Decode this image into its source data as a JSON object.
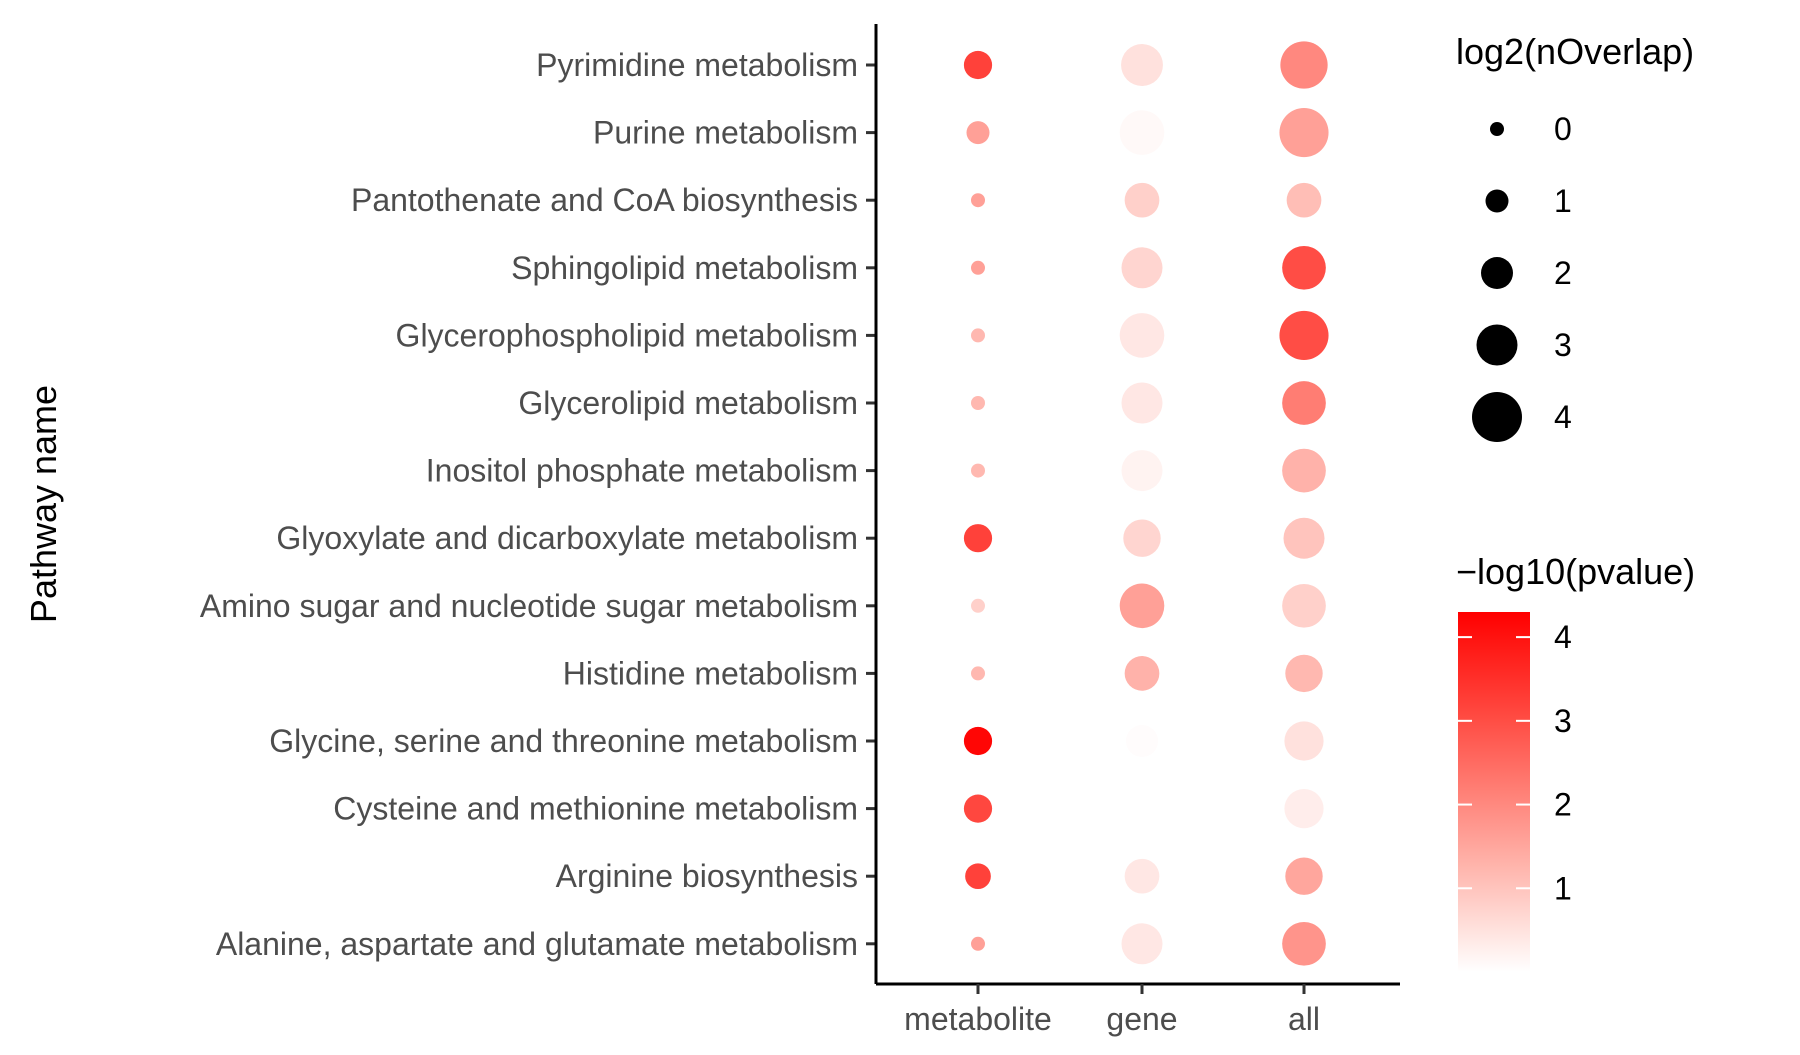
{
  "chart_data": {
    "type": "dot",
    "title": "",
    "xlabel": "",
    "ylabel": "Pathway name",
    "categories_x": [
      "metabolite",
      "gene",
      "all"
    ],
    "categories_y": [
      "Pyrimidine metabolism",
      "Purine metabolism",
      "Pantothenate and CoA biosynthesis",
      "Sphingolipid metabolism",
      "Glycerophospholipid metabolism",
      "Glycerolipid metabolism",
      "Inositol phosphate metabolism",
      "Glyoxylate and dicarboxylate metabolism",
      "Amino sugar and nucleotide sugar metabolism",
      "Histidine metabolism",
      "Glycine, serine and threonine metabolism",
      "Cysteine and methionine metabolism",
      "Arginine biosynthesis",
      "Alanine, aspartate and glutamate metabolism"
    ],
    "points": [
      {
        "x": "metabolite",
        "y": "Pyrimidine metabolism",
        "size": 1.58,
        "color": 3.2
      },
      {
        "x": "gene",
        "y": "Pyrimidine metabolism",
        "size": 3.1,
        "color": 0.5
      },
      {
        "x": "all",
        "y": "Pyrimidine metabolism",
        "size": 3.7,
        "color": 2.0
      },
      {
        "x": "metabolite",
        "y": "Purine metabolism",
        "size": 1.0,
        "color": 1.6
      },
      {
        "x": "gene",
        "y": "Purine metabolism",
        "size": 3.4,
        "color": 0.1
      },
      {
        "x": "all",
        "y": "Purine metabolism",
        "size": 3.9,
        "color": 1.6
      },
      {
        "x": "metabolite",
        "y": "Pantothenate and CoA biosynthesis",
        "size": 0.0,
        "color": 1.6
      },
      {
        "x": "gene",
        "y": "Pantothenate and CoA biosynthesis",
        "size": 2.3,
        "color": 0.8
      },
      {
        "x": "all",
        "y": "Pantothenate and CoA biosynthesis",
        "size": 2.3,
        "color": 1.1
      },
      {
        "x": "metabolite",
        "y": "Sphingolipid metabolism",
        "size": 0.0,
        "color": 1.6
      },
      {
        "x": "gene",
        "y": "Sphingolipid metabolism",
        "size": 3.0,
        "color": 0.7
      },
      {
        "x": "all",
        "y": "Sphingolipid metabolism",
        "size": 3.3,
        "color": 3.0
      },
      {
        "x": "metabolite",
        "y": "Glycerophospholipid metabolism",
        "size": 0.0,
        "color": 1.2
      },
      {
        "x": "gene",
        "y": "Glycerophospholipid metabolism",
        "size": 3.4,
        "color": 0.4
      },
      {
        "x": "all",
        "y": "Glycerophospholipid metabolism",
        "size": 3.9,
        "color": 3.0
      },
      {
        "x": "metabolite",
        "y": "Glycerolipid metabolism",
        "size": 0.0,
        "color": 1.2
      },
      {
        "x": "gene",
        "y": "Glycerolipid metabolism",
        "size": 3.0,
        "color": 0.4
      },
      {
        "x": "all",
        "y": "Glycerolipid metabolism",
        "size": 3.3,
        "color": 2.2
      },
      {
        "x": "metabolite",
        "y": "Inositol phosphate metabolism",
        "size": 0.0,
        "color": 1.2
      },
      {
        "x": "gene",
        "y": "Inositol phosphate metabolism",
        "size": 3.0,
        "color": 0.2
      },
      {
        "x": "all",
        "y": "Inositol phosphate metabolism",
        "size": 3.3,
        "color": 1.3
      },
      {
        "x": "metabolite",
        "y": "Glyoxylate and dicarboxylate metabolism",
        "size": 1.58,
        "color": 3.2
      },
      {
        "x": "gene",
        "y": "Glyoxylate and dicarboxylate metabolism",
        "size": 2.6,
        "color": 0.7
      },
      {
        "x": "all",
        "y": "Glyoxylate and dicarboxylate metabolism",
        "size": 3.0,
        "color": 1.0
      },
      {
        "x": "metabolite",
        "y": "Amino sugar and nucleotide sugar metabolism",
        "size": 0.0,
        "color": 0.8
      },
      {
        "x": "gene",
        "y": "Amino sugar and nucleotide sugar metabolism",
        "size": 3.4,
        "color": 1.6
      },
      {
        "x": "all",
        "y": "Amino sugar and nucleotide sugar metabolism",
        "size": 3.3,
        "color": 0.8
      },
      {
        "x": "metabolite",
        "y": "Histidine metabolism",
        "size": 0.0,
        "color": 1.2
      },
      {
        "x": "gene",
        "y": "Histidine metabolism",
        "size": 2.3,
        "color": 1.3
      },
      {
        "x": "all",
        "y": "Histidine metabolism",
        "size": 2.6,
        "color": 1.2
      },
      {
        "x": "metabolite",
        "y": "Glycine, serine and threonine metabolism",
        "size": 1.58,
        "color": 4.2
      },
      {
        "x": "gene",
        "y": "Glycine, serine and threonine metabolism",
        "size": 2.0,
        "color": 0.05
      },
      {
        "x": "all",
        "y": "Glycine, serine and threonine metabolism",
        "size": 2.8,
        "color": 0.5
      },
      {
        "x": "metabolite",
        "y": "Cysteine and methionine metabolism",
        "size": 1.58,
        "color": 3.1
      },
      {
        "x": "all",
        "y": "Cysteine and methionine metabolism",
        "size": 2.8,
        "color": 0.3
      },
      {
        "x": "metabolite",
        "y": "Arginine biosynthesis",
        "size": 1.3,
        "color": 3.2
      },
      {
        "x": "gene",
        "y": "Arginine biosynthesis",
        "size": 2.3,
        "color": 0.4
      },
      {
        "x": "all",
        "y": "Arginine biosynthesis",
        "size": 2.6,
        "color": 1.5
      },
      {
        "x": "metabolite",
        "y": "Alanine, aspartate and glutamate metabolism",
        "size": 0.0,
        "color": 1.6
      },
      {
        "x": "gene",
        "y": "Alanine, aspartate and glutamate metabolism",
        "size": 3.0,
        "color": 0.4
      },
      {
        "x": "all",
        "y": "Alanine, aspartate and glutamate metabolism",
        "size": 3.3,
        "color": 1.8
      }
    ],
    "legend_size": {
      "title": "log2(nOverlap)",
      "values": [
        0,
        1,
        2,
        3,
        4
      ],
      "labels": [
        "0",
        "1",
        "2",
        "3",
        "4"
      ]
    },
    "legend_color": {
      "title": "−log10(pvalue)",
      "ticks": [
        1,
        2,
        3,
        4
      ],
      "labels": [
        "1",
        "2",
        "3",
        "4"
      ],
      "range": [
        0,
        4.3
      ],
      "low_color": "#ffffff",
      "high_color": "#ff0000"
    },
    "legend_placement": "right",
    "grid": false
  }
}
